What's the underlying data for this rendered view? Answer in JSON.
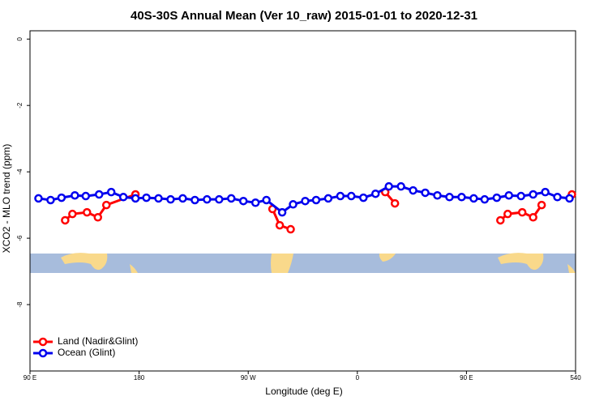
{
  "chart_data": {
    "type": "line",
    "title": "40S-30S Annual Mean (Ver 10_raw)   2015-01-01 to 2020-12-31",
    "x_label": "Longitude (deg E)",
    "y_label": "XCO2 - MLO trend (ppm)",
    "xlim": [
      90,
      540
    ],
    "ylim": [
      -10,
      0.25
    ],
    "xticks": [
      {
        "value": 90,
        "label": "90 E"
      },
      180,
      {
        "value": 270,
        "label": "90 W"
      },
      {
        "value": 360,
        "label": "0"
      },
      {
        "value": 450,
        "label": "90 E"
      },
      540
    ],
    "yticks": [
      0,
      -2,
      -4,
      -6,
      -8
    ],
    "legend": "bottom-left",
    "series": [
      {
        "name": "Land (Nadir&Glint)",
        "color": "#ff0000",
        "x": [
          119,
          125,
          137,
          146,
          153,
          177,
          null,
          290,
          296,
          305,
          null,
          383,
          391,
          null,
          478,
          484,
          496,
          505,
          512,
          null,
          537
        ],
        "values": [
          -5.46,
          -5.27,
          -5.22,
          -5.37,
          -5.0,
          -4.68,
          null,
          -5.12,
          -5.61,
          -5.73,
          null,
          -4.61,
          -4.95,
          null,
          -5.46,
          -5.27,
          -5.22,
          -5.37,
          -5.0,
          null,
          -4.68
        ]
      },
      {
        "name": "Ocean (Glint)",
        "color": "#0000ee",
        "x": [
          97,
          107,
          116,
          127,
          136,
          147,
          157,
          167,
          177,
          186,
          196,
          206,
          216,
          226,
          236,
          246,
          256,
          266,
          276,
          285,
          298,
          307,
          317,
          326,
          336,
          346,
          355,
          365,
          375,
          386,
          396,
          406,
          416,
          426,
          436,
          446,
          456,
          465,
          475,
          485,
          495,
          505,
          515,
          525,
          535
        ],
        "values": [
          -4.8,
          -4.85,
          -4.78,
          -4.71,
          -4.73,
          -4.68,
          -4.61,
          -4.76,
          -4.8,
          -4.78,
          -4.8,
          -4.83,
          -4.8,
          -4.85,
          -4.83,
          -4.83,
          -4.8,
          -4.88,
          -4.93,
          -4.85,
          -5.22,
          -4.98,
          -4.88,
          -4.85,
          -4.8,
          -4.73,
          -4.73,
          -4.78,
          -4.66,
          -4.44,
          -4.44,
          -4.56,
          -4.63,
          -4.71,
          -4.76,
          -4.76,
          -4.8,
          -4.83,
          -4.78,
          -4.71,
          -4.73,
          -4.68,
          -4.61,
          -4.76,
          -4.8
        ]
      }
    ]
  }
}
